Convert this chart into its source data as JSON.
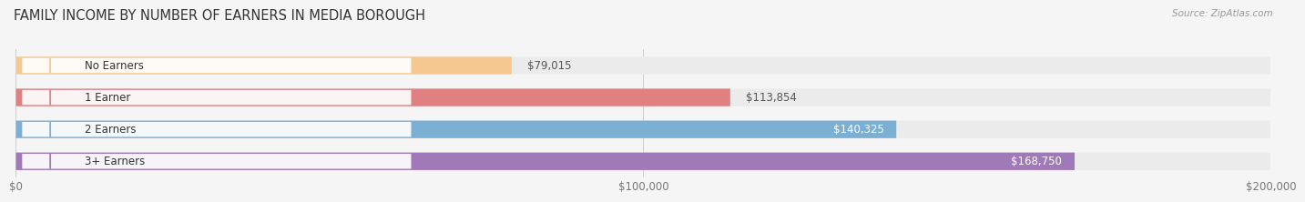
{
  "title": "FAMILY INCOME BY NUMBER OF EARNERS IN MEDIA BOROUGH",
  "source": "Source: ZipAtlas.com",
  "categories": [
    "No Earners",
    "1 Earner",
    "2 Earners",
    "3+ Earners"
  ],
  "values": [
    79015,
    113854,
    140325,
    168750
  ],
  "labels": [
    "$79,015",
    "$113,854",
    "$140,325",
    "$168,750"
  ],
  "bar_colors": [
    "#f5c891",
    "#e08080",
    "#7bafd4",
    "#a07ab8"
  ],
  "bar_bg_color": "#ebebeb",
  "xlim": [
    0,
    200000
  ],
  "xticklabels": [
    "$0",
    "$100,000",
    "$200,000"
  ],
  "xtick_vals": [
    0,
    100000,
    200000
  ],
  "title_fontsize": 10.5,
  "label_fontsize": 8.5,
  "tick_fontsize": 8.5,
  "cat_fontsize": 8.5,
  "background_color": "#f5f5f5",
  "bar_height": 0.55,
  "value_color_inside": "#ffffff",
  "value_color_outside": "#555555",
  "inside_threshold": 130000
}
